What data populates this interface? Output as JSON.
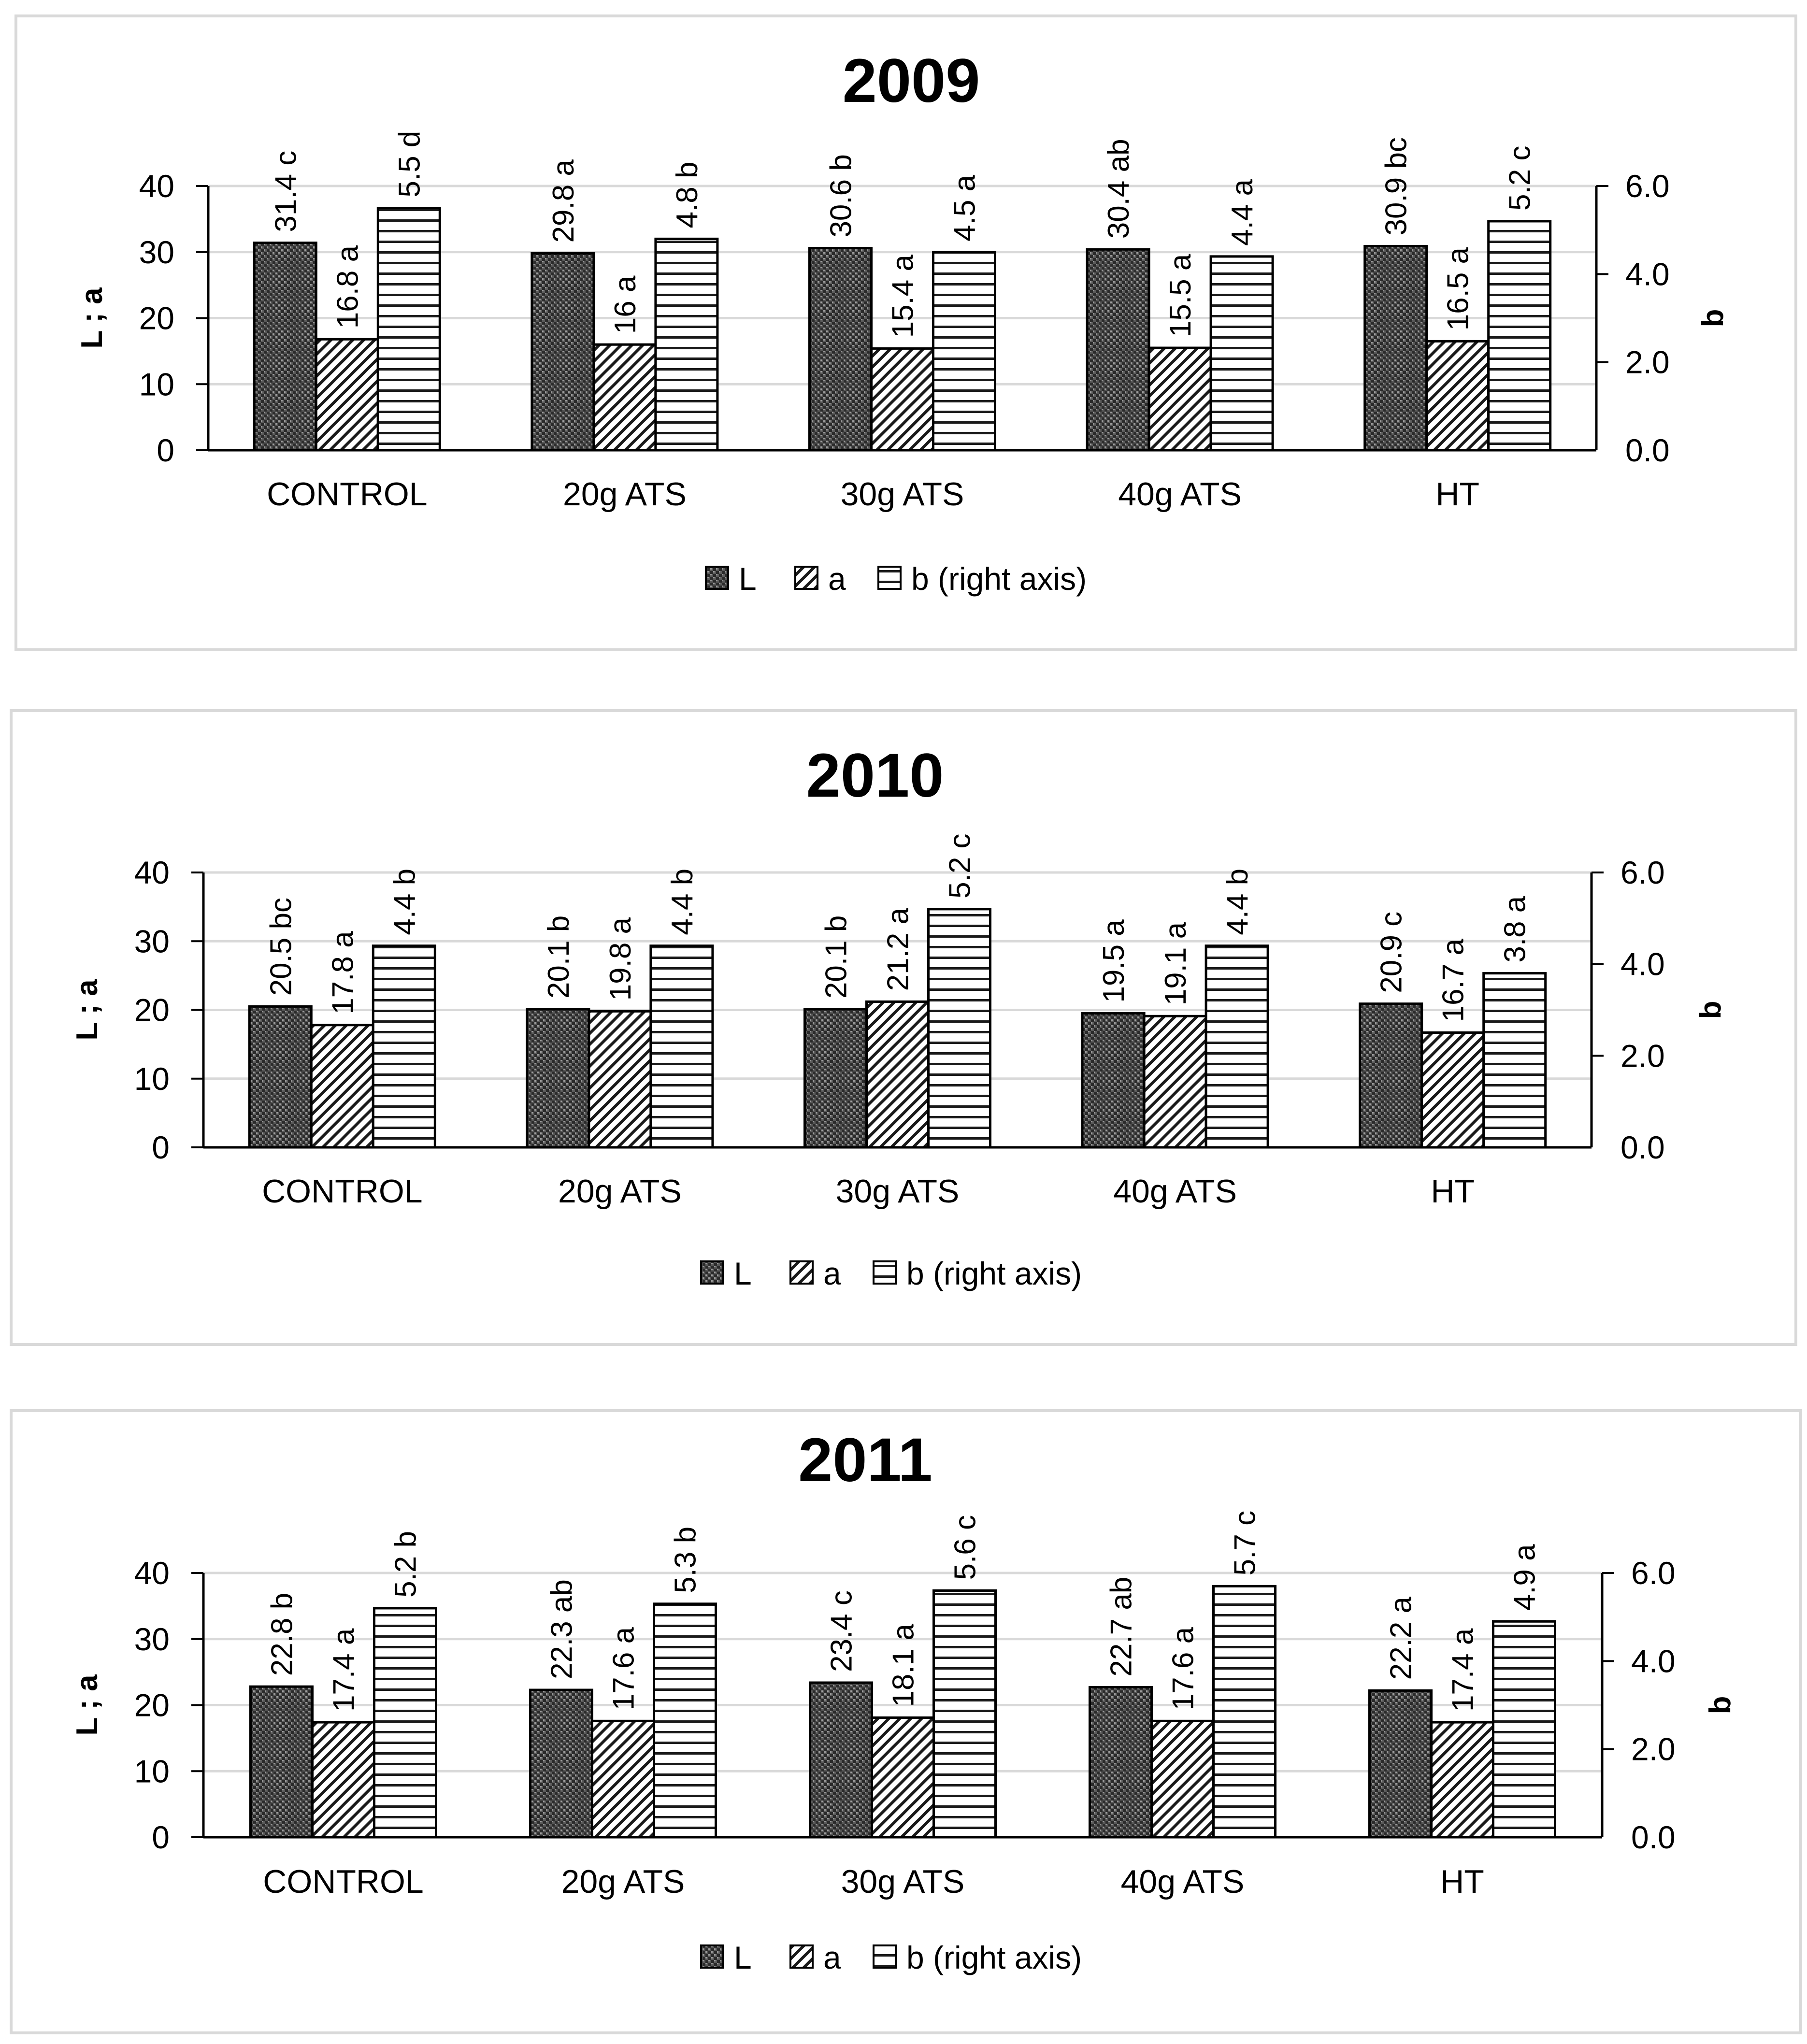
{
  "chart_data": [
    {
      "type": "bar",
      "title": "2009",
      "categories": [
        "CONTROL",
        "20g ATS",
        "30g ATS",
        "40g ATS",
        "HT"
      ],
      "ylabel": "L ; a",
      "y2label": "b",
      "ylim": [
        0,
        40
      ],
      "y2lim": [
        0,
        6
      ],
      "yticks": [
        "0",
        "10",
        "20",
        "30",
        "40"
      ],
      "y2ticks": [
        "0.0",
        "2.0",
        "4.0",
        "6.0"
      ],
      "series": [
        {
          "name": "L",
          "axis": "left",
          "pattern": "checker",
          "values": [
            31.4,
            29.8,
            30.6,
            30.4,
            30.9
          ],
          "labels": [
            "31.4 c",
            "29.8 a",
            "30.6 b",
            "30.4 ab",
            "30.9 bc"
          ]
        },
        {
          "name": "a",
          "axis": "left",
          "pattern": "diagonal",
          "values": [
            16.8,
            16,
            15.4,
            15.5,
            16.5
          ],
          "labels": [
            "16.8 a",
            "16 a",
            "15.4 a",
            "15.5 a",
            "16.5 a"
          ]
        },
        {
          "name": "b (right axis)",
          "axis": "right",
          "pattern": "horizontal",
          "values": [
            5.5,
            4.8,
            4.5,
            4.4,
            5.2
          ],
          "labels": [
            "5.5 d",
            "4.8 b",
            "4.5 a",
            "4.4 a",
            "5.2 c"
          ]
        }
      ],
      "legend": [
        "L",
        "a",
        "b (right axis)"
      ],
      "grid": true,
      "legend_position": "bottom"
    },
    {
      "type": "bar",
      "title": "2010",
      "categories": [
        "CONTROL",
        "20g ATS",
        "30g ATS",
        "40g ATS",
        "HT"
      ],
      "ylabel": "L ; a",
      "y2label": "b",
      "ylim": [
        0,
        40
      ],
      "y2lim": [
        0,
        6
      ],
      "yticks": [
        "0",
        "10",
        "20",
        "30",
        "40"
      ],
      "y2ticks": [
        "0.0",
        "2.0",
        "4.0",
        "6.0"
      ],
      "series": [
        {
          "name": "L",
          "axis": "left",
          "pattern": "checker",
          "values": [
            20.5,
            20.1,
            20.1,
            19.5,
            20.9
          ],
          "labels": [
            "20.5 bc",
            "20.1 b",
            "20.1 b",
            "19.5 a",
            "20.9 c"
          ]
        },
        {
          "name": "a",
          "axis": "left",
          "pattern": "diagonal",
          "values": [
            17.8,
            19.8,
            21.2,
            19.1,
            16.7
          ],
          "labels": [
            "17.8 a",
            "19.8 a",
            "21.2 a",
            "19.1 a",
            "16.7 a"
          ]
        },
        {
          "name": "b (right axis)",
          "axis": "right",
          "pattern": "horizontal",
          "values": [
            4.4,
            4.4,
            5.2,
            4.4,
            3.8
          ],
          "labels": [
            "4.4 b",
            "4.4 b",
            "5.2 c",
            "4.4 b",
            "3.8 a"
          ]
        }
      ],
      "legend": [
        "L",
        "a",
        "b (right axis)"
      ],
      "grid": true,
      "legend_position": "bottom"
    },
    {
      "type": "bar",
      "title": "2011",
      "categories": [
        "CONTROL",
        "20g ATS",
        "30g ATS",
        "40g ATS",
        "HT"
      ],
      "ylabel": "L ; a",
      "y2label": "b",
      "ylim": [
        0,
        40
      ],
      "y2lim": [
        0,
        6
      ],
      "yticks": [
        "0",
        "10",
        "20",
        "30",
        "40"
      ],
      "y2ticks": [
        "0.0",
        "2.0",
        "4.0",
        "6.0"
      ],
      "series": [
        {
          "name": "L",
          "axis": "left",
          "pattern": "checker",
          "values": [
            22.8,
            22.3,
            23.4,
            22.7,
            22.2
          ],
          "labels": [
            "22.8 b",
            "22.3 ab",
            "23.4 c",
            "22.7 ab",
            "22.2 a"
          ]
        },
        {
          "name": "a",
          "axis": "left",
          "pattern": "diagonal",
          "values": [
            17.4,
            17.6,
            18.1,
            17.6,
            17.4
          ],
          "labels": [
            "17.4 a",
            "17.6 a",
            "18.1 a",
            "17.6 a",
            "17.4 a"
          ]
        },
        {
          "name": "b (right axis)",
          "axis": "right",
          "pattern": "horizontal",
          "values": [
            5.2,
            5.3,
            5.6,
            5.7,
            4.9
          ],
          "labels": [
            "5.2 b",
            "5.3 b",
            "5.6 c",
            "5.7 c",
            "4.9 a"
          ]
        }
      ],
      "legend": [
        "L",
        "a",
        "b (right axis)"
      ],
      "grid": true,
      "legend_position": "bottom"
    }
  ]
}
